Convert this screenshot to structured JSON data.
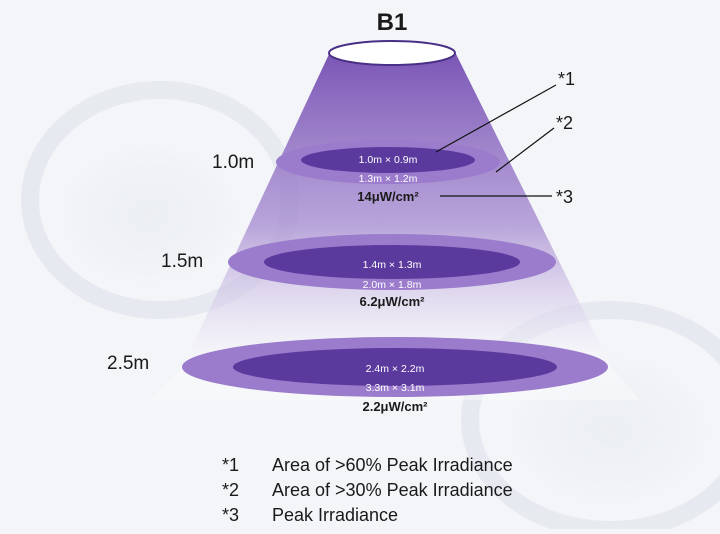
{
  "diagram": {
    "title": "B1",
    "colors": {
      "background": "#f3f5f8",
      "beam_top": "#7a55b5",
      "beam_bottom": "#ffffff",
      "outer_ellipse": "#9b7ccc",
      "inner_ellipse": "#5b3a9e",
      "text_dark": "#1a1a1a",
      "text_light": "#ffffff",
      "leader_line": "#111111"
    },
    "levels": [
      {
        "distance": "1.0m",
        "inner_area": "1.0m × 0.9m",
        "outer_area": "1.3m × 1.2m",
        "irradiance": "14μW/cm²"
      },
      {
        "distance": "1.5m",
        "inner_area": "1.4m × 1.3m",
        "outer_area": "2.0m × 1.8m",
        "irradiance": "6.2μW/cm²"
      },
      {
        "distance": "2.5m",
        "inner_area": "2.4m × 2.2m",
        "outer_area": "3.3m × 3.1m",
        "irradiance": "2.2μW/cm²"
      }
    ],
    "callouts": [
      {
        "mark": "*1"
      },
      {
        "mark": "*2"
      },
      {
        "mark": "*3"
      }
    ]
  },
  "legend": [
    {
      "mark": "*1",
      "text": "Area of >60% Peak Irradiance"
    },
    {
      "mark": "*2",
      "text": "Area of >30% Peak Irradiance"
    },
    {
      "mark": "*3",
      "text": "Peak Irradiance"
    }
  ]
}
